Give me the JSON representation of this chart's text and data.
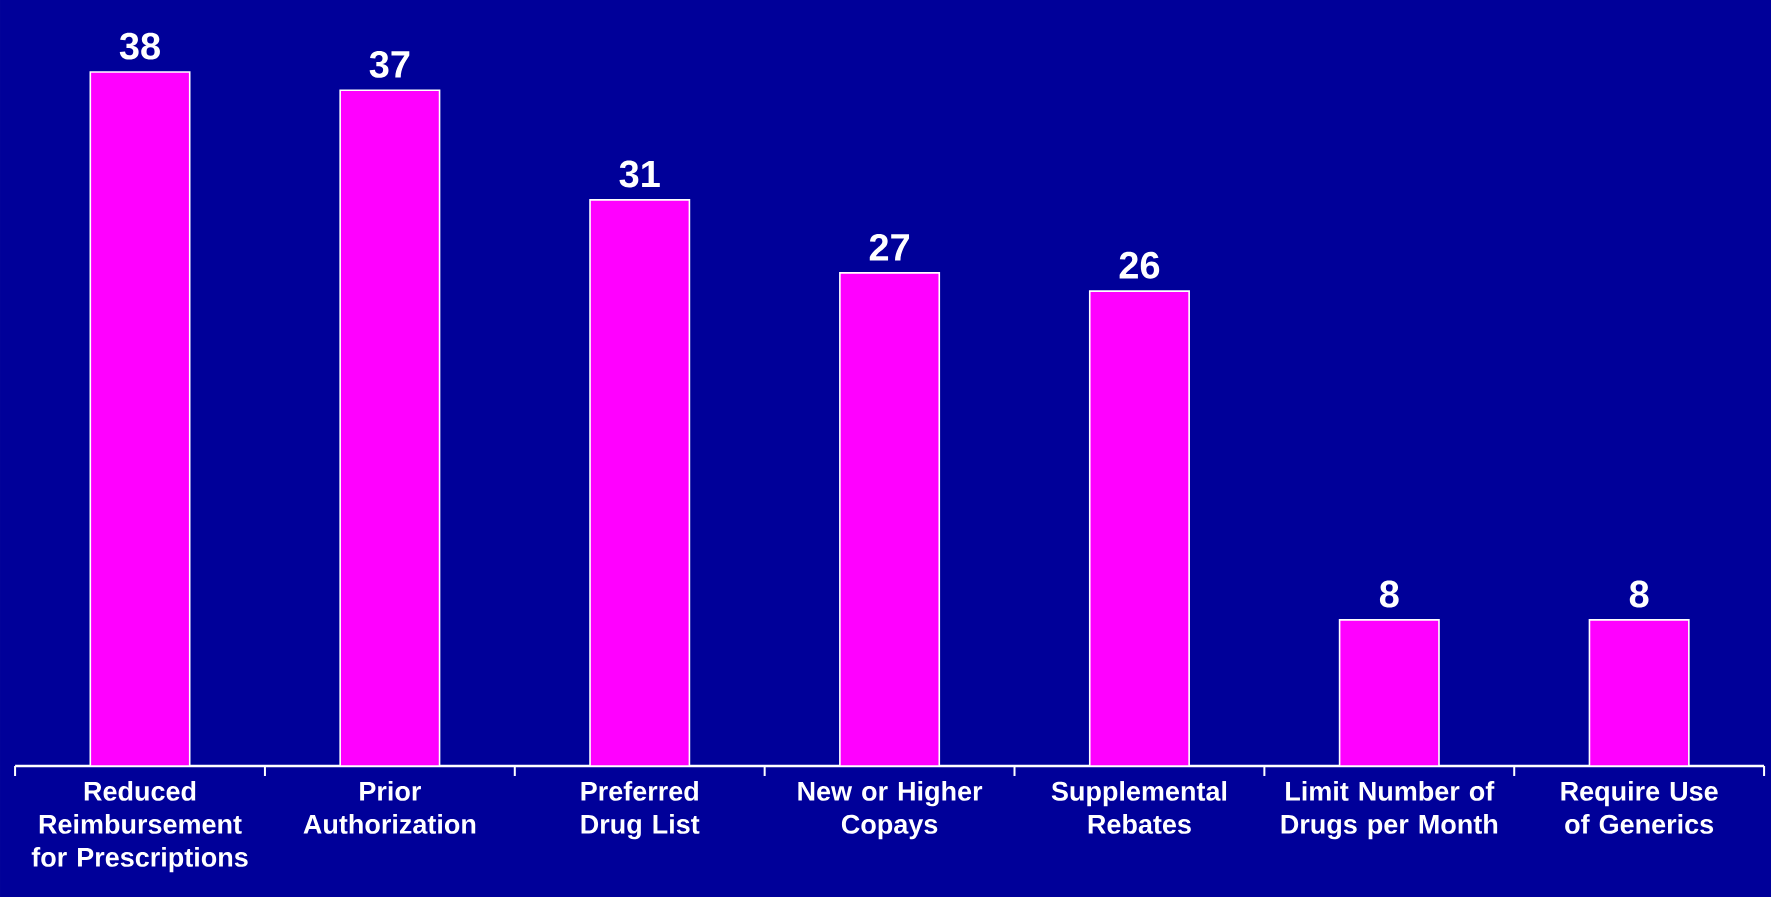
{
  "chart_data": {
    "type": "bar",
    "categories": [
      "Reduced Reimbursement for Prescriptions",
      "Prior Authorization",
      "Preferred Drug List",
      "New or Higher Copays",
      "Supplemental Rebates",
      "Limit Number of Drugs per Month",
      "Require Use of Generics"
    ],
    "values": [
      38,
      37,
      31,
      27,
      26,
      8,
      8
    ],
    "color": "#ff00ff",
    "data_labels": true
  }
}
